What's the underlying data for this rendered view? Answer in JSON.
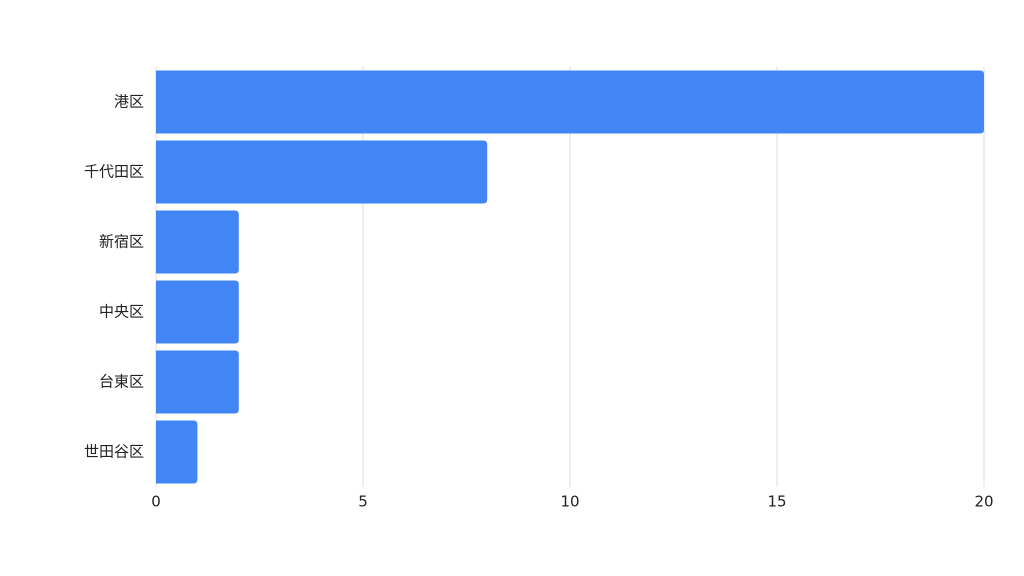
{
  "chart_data": {
    "type": "bar",
    "orientation": "horizontal",
    "categories": [
      "港区",
      "千代田区",
      "新宿区",
      "中央区",
      "台東区",
      "世田谷区"
    ],
    "values": [
      20,
      8,
      2,
      2,
      2,
      1
    ],
    "color": "#4285f4",
    "xlim": [
      0,
      20
    ],
    "xticks": [
      0,
      5,
      10,
      15,
      20
    ],
    "grid": true
  }
}
